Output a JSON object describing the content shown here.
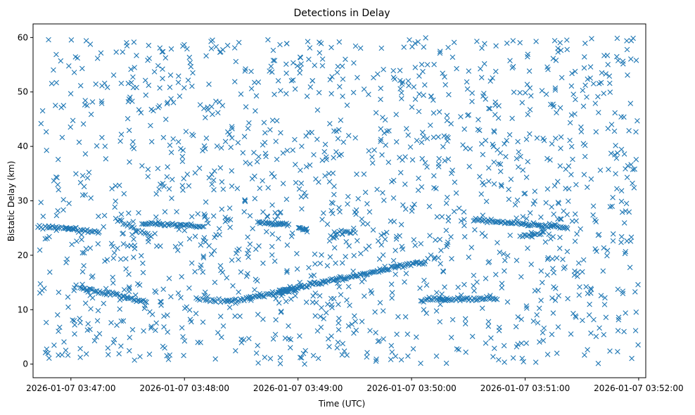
{
  "chart_data": {
    "type": "scatter",
    "title": "Detections in Delay",
    "xlabel": "Time (UTC)",
    "ylabel": "Bistatic Delay (km)",
    "marker": "x",
    "color": "#1f77b4",
    "xlim": [
      -80,
      1215
    ],
    "ylim": [
      -2.5,
      62.5
    ],
    "x_unit": "seconds after 2026-01-07 03:47:00",
    "x_ticks": [
      0,
      240,
      480,
      720,
      960,
      1200
    ],
    "x_tick_labels": [
      "2026-01-07 03:47:00",
      "2026-01-07 03:48:00",
      "2026-01-07 03:49:00",
      "2026-01-07 03:50:00",
      "2026-01-07 03:51:00",
      "2026-01-07 03:52:00"
    ],
    "y_ticks": [
      0,
      10,
      20,
      30,
      40,
      50,
      60
    ],
    "y_tick_labels": [
      "0",
      "10",
      "20",
      "30",
      "40",
      "50",
      "60"
    ],
    "noise": {
      "count": 1500,
      "x_range": [
        -70,
        1200
      ],
      "y_range": [
        0,
        60
      ]
    },
    "tracks": [
      {
        "x": [
          -70,
          10
        ],
        "y": [
          25.2,
          24.9
        ],
        "n": 22
      },
      {
        "x": [
          -10,
          60
        ],
        "y": [
          24.9,
          24.2
        ],
        "n": 22
      },
      {
        "x": [
          20,
          160
        ],
        "y": [
          14.0,
          11.5
        ],
        "n": 45
      },
      {
        "x": [
          95,
          170
        ],
        "y": [
          26.5,
          23.5
        ],
        "n": 20
      },
      {
        "x": [
          150,
          280
        ],
        "y": [
          26.0,
          25.2
        ],
        "n": 45
      },
      {
        "x": [
          280,
          330
        ],
        "y": [
          12.0,
          11.6
        ],
        "n": 12
      },
      {
        "x": [
          330,
          480
        ],
        "y": [
          11.5,
          13.8
        ],
        "n": 50
      },
      {
        "x": [
          395,
          460
        ],
        "y": [
          26.0,
          25.7
        ],
        "n": 25
      },
      {
        "x": [
          440,
          750
        ],
        "y": [
          13.5,
          18.8
        ],
        "n": 110
      },
      {
        "x": [
          480,
          500
        ],
        "y": [
          25.2,
          24.5
        ],
        "n": 10
      },
      {
        "x": [
          560,
          600
        ],
        "y": [
          24.2,
          24.2
        ],
        "n": 12
      },
      {
        "x": [
          740,
          790
        ],
        "y": [
          11.8,
          12.0
        ],
        "n": 18
      },
      {
        "x": [
          780,
          900
        ],
        "y": [
          11.8,
          12.1
        ],
        "n": 40
      },
      {
        "x": [
          850,
          1050
        ],
        "y": [
          26.5,
          25.0
        ],
        "n": 70
      },
      {
        "x": [
          950,
          1000
        ],
        "y": [
          23.4,
          24.2
        ],
        "n": 15
      }
    ]
  }
}
